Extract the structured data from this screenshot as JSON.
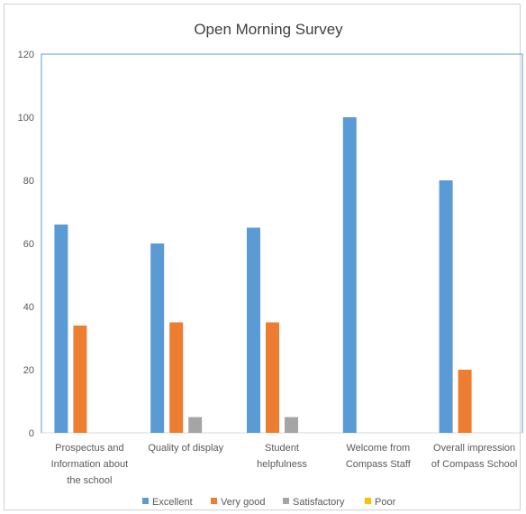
{
  "chart_data": {
    "type": "bar",
    "title": "Open Morning Survey",
    "xlabel": "",
    "ylabel": "",
    "ylim": [
      0,
      120
    ],
    "yticks": [
      0,
      20,
      40,
      60,
      80,
      100,
      120
    ],
    "grid": false,
    "legend_position": "bottom",
    "categories": [
      [
        "Prospectus and",
        "Information about",
        "the school"
      ],
      [
        "Quality of display"
      ],
      [
        "Student",
        "helpfulness"
      ],
      [
        "Welcome from",
        "Compass Staff"
      ],
      [
        "Overall impression",
        "of Compass School"
      ]
    ],
    "series": [
      {
        "name": "Excellent",
        "color": "#5b9bd5",
        "values": [
          66,
          60,
          65,
          100,
          80
        ]
      },
      {
        "name": "Very good",
        "color": "#ed7d31",
        "values": [
          34,
          35,
          35,
          0,
          20
        ]
      },
      {
        "name": "Satisfactory",
        "color": "#a5a5a5",
        "values": [
          0,
          5,
          5,
          0,
          0
        ]
      },
      {
        "name": "Poor",
        "color": "#ffc000",
        "values": [
          0,
          0,
          0,
          0,
          0
        ]
      }
    ]
  }
}
